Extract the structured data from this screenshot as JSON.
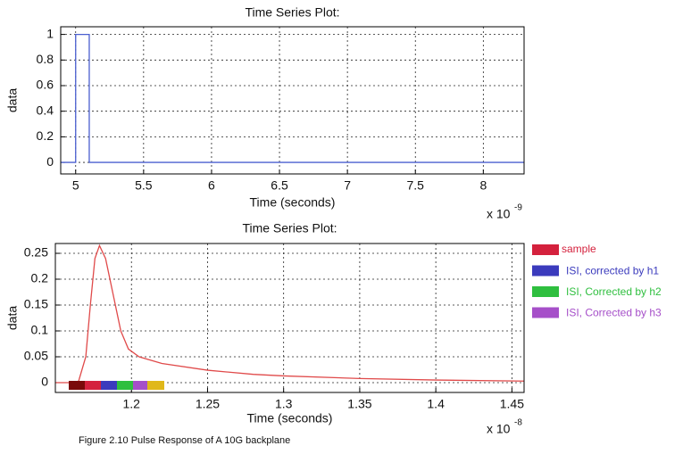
{
  "chart_data": [
    {
      "type": "line",
      "title": "Time Series Plot:",
      "x_label": "Time (seconds)",
      "y_label": "data",
      "x_multiplier": {
        "base": "x 10",
        "exponent": "-9"
      },
      "x": [
        4.89,
        5,
        5,
        5.1,
        5.1,
        8.3
      ],
      "series": [
        {
          "color": "#4a5fd0",
          "values": [
            0,
            0,
            1,
            1,
            0,
            0
          ]
        }
      ],
      "xlim": [
        4.89,
        8.3
      ],
      "xticks": [
        5,
        5.5,
        6,
        6.5,
        7,
        7.5,
        8
      ],
      "ylim": [
        -0.09,
        1.06
      ],
      "yticks": [
        0,
        0.2,
        0.4,
        0.6,
        0.8,
        1
      ],
      "grid": true
    },
    {
      "type": "line",
      "title": "Time Series Plot:",
      "x_label": "Time (seconds)",
      "y_label": "data",
      "x_multiplier": {
        "base": "x 10",
        "exponent": "-8"
      },
      "x": [
        1.15,
        1.165,
        1.17,
        1.173,
        1.176,
        1.179,
        1.183,
        1.188,
        1.193,
        1.198,
        1.205,
        1.22,
        1.25,
        1.28,
        1.3,
        1.35,
        1.4,
        1.458
      ],
      "series": [
        {
          "color": "#e04a4a",
          "values": [
            0,
            0,
            0.05,
            0.15,
            0.24,
            0.265,
            0.24,
            0.17,
            0.1,
            0.065,
            0.05,
            0.037,
            0.024,
            0.016,
            0.013,
            0.008,
            0.005,
            0.003
          ]
        }
      ],
      "xlim": [
        1.15,
        1.458
      ],
      "xticks": [
        1.2,
        1.25,
        1.3,
        1.35,
        1.4,
        1.45
      ],
      "ylim": [
        -0.019,
        0.269
      ],
      "yticks": [
        0,
        0.05,
        0.1,
        0.15,
        0.2,
        0.25
      ],
      "grid": true,
      "legend": [
        {
          "name": "sample",
          "color": "#d4213d"
        },
        {
          "name": "ISI, corrected by h1",
          "color": "#3b3bbd"
        },
        {
          "name": "ISI, Corrected by h2",
          "color": "#2fbf3f"
        },
        {
          "name": "ISI, Corrected by h3",
          "color": "#a64fc9"
        }
      ]
    }
  ],
  "caption": "Figure 2.10 Pulse Response of A 10G backplane"
}
